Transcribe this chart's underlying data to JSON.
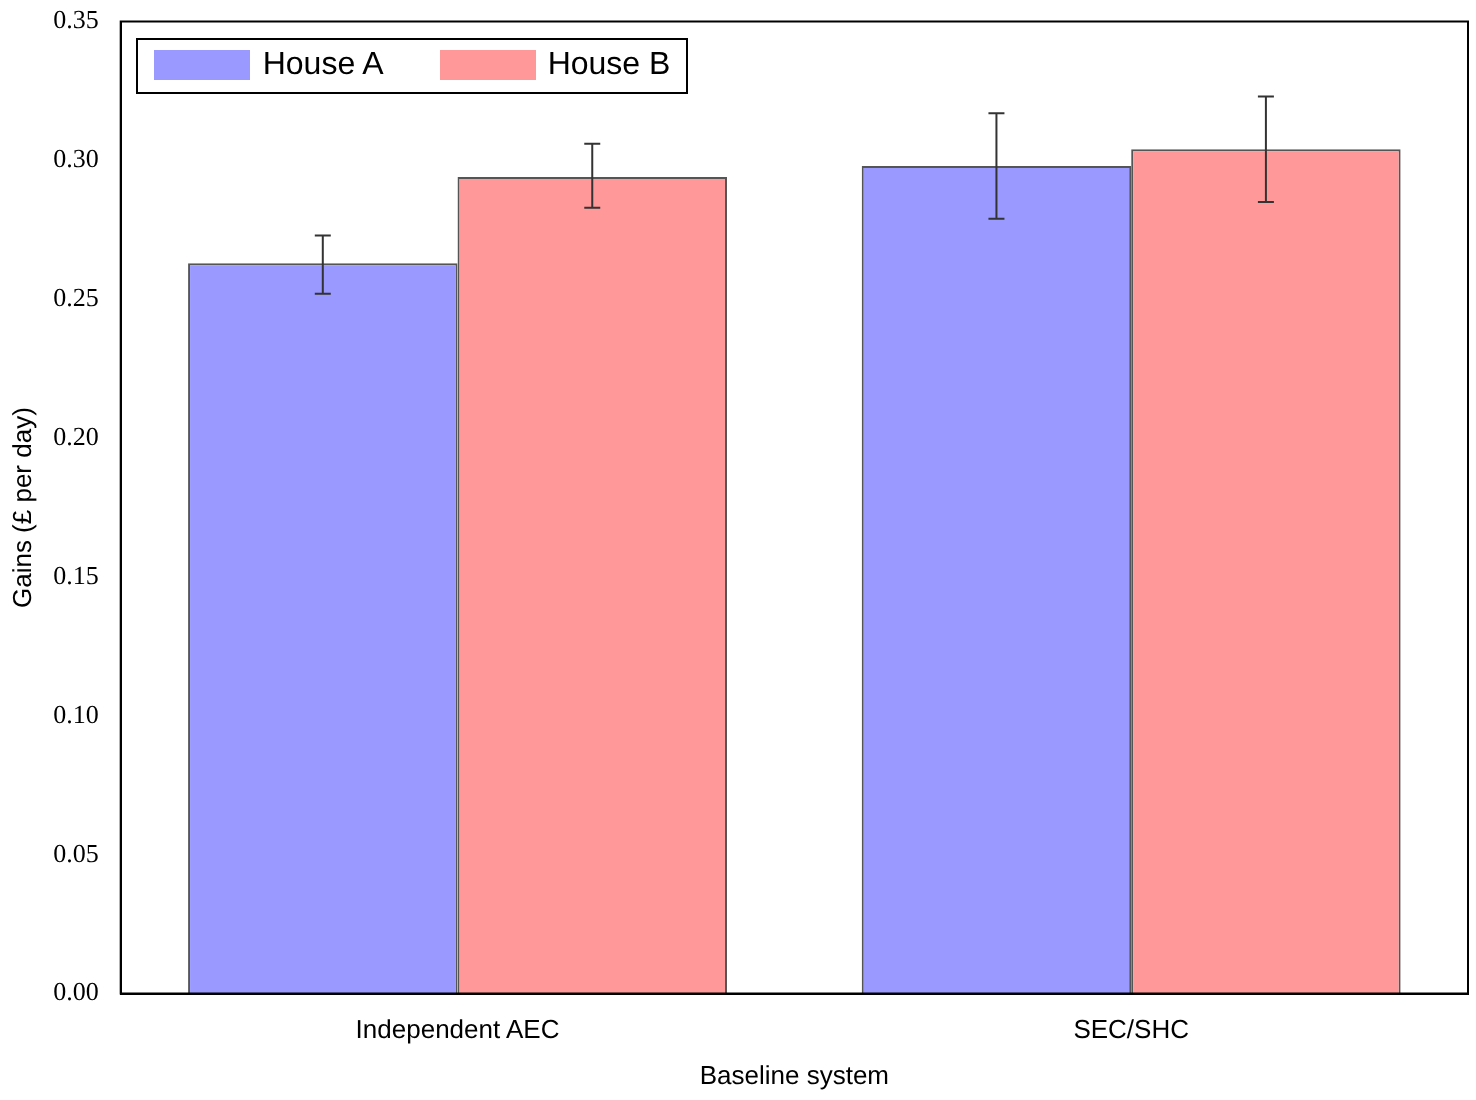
{
  "chart_data": {
    "type": "bar",
    "xlabel": "Baseline system",
    "ylabel": "Gains (£ per day)",
    "categories": [
      "Independent AEC",
      "SEC/SHC"
    ],
    "series": [
      {
        "name": "House A",
        "color": "#9999ff",
        "values": [
          0.263,
          0.298
        ],
        "errors": [
          [
            0.252,
            0.273
          ],
          [
            0.279,
            0.317
          ]
        ]
      },
      {
        "name": "House B",
        "color": "#ff9999",
        "values": [
          0.294,
          0.304
        ],
        "errors": [
          [
            0.283,
            0.306
          ],
          [
            0.285,
            0.323
          ]
        ]
      }
    ],
    "ylim": [
      0,
      0.35
    ],
    "yticks": [
      {
        "value": 0,
        "label": "0.00"
      },
      {
        "value": 0.05,
        "label": "0.05"
      },
      {
        "value": 0.1,
        "label": "0.10"
      },
      {
        "value": 0.15,
        "label": "0.15"
      },
      {
        "value": 0.2,
        "label": "0.20"
      },
      {
        "value": 0.25,
        "label": "0.25"
      },
      {
        "value": 0.3,
        "label": "0.30"
      },
      {
        "value": 0.35,
        "label": "0.35"
      }
    ],
    "grid": false,
    "legend": "top left"
  }
}
